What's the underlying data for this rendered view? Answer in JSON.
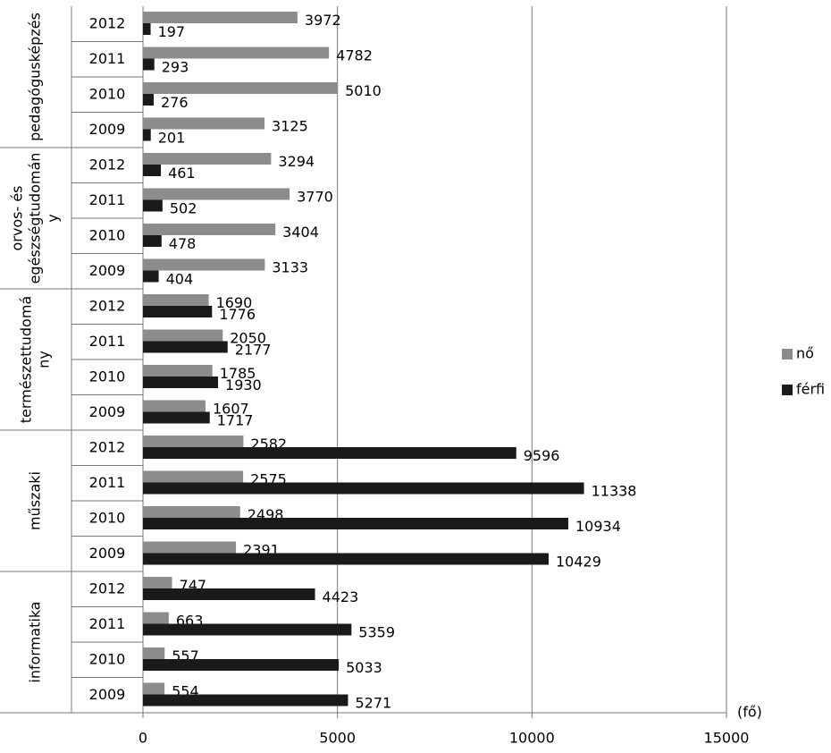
{
  "chart_data": {
    "type": "bar",
    "orientation": "horizontal",
    "groups": [
      {
        "name": [
          "pedagógusképzés"
        ],
        "categories": [
          "2012",
          "2011",
          "2010",
          "2009"
        ]
      },
      {
        "name": [
          "orvos- és",
          "egészségtudomán",
          "y"
        ],
        "categories": [
          "2012",
          "2011",
          "2010",
          "2009"
        ]
      },
      {
        "name": [
          "természettudomá",
          "ny"
        ],
        "categories": [
          "2012",
          "2011",
          "2010",
          "2009"
        ]
      },
      {
        "name": [
          "műszaki"
        ],
        "categories": [
          "2012",
          "2011",
          "2010",
          "2009"
        ]
      },
      {
        "name": [
          "informatika"
        ],
        "categories": [
          "2012",
          "2011",
          "2010",
          "2009"
        ]
      }
    ],
    "series": [
      {
        "name": "nő",
        "color": "#8c8c8c",
        "values": [
          3972,
          4782,
          5010,
          3125,
          3294,
          3770,
          3404,
          3133,
          1690,
          2050,
          1785,
          1607,
          2582,
          2575,
          2498,
          2391,
          747,
          663,
          557,
          554
        ]
      },
      {
        "name": "férfi",
        "color": "#1a1a1a",
        "values": [
          197,
          293,
          276,
          201,
          461,
          502,
          478,
          404,
          1776,
          2177,
          1930,
          1717,
          9596,
          11338,
          10934,
          10429,
          4423,
          5359,
          5033,
          5271
        ]
      }
    ],
    "xlim": [
      0,
      15000
    ],
    "xticks": [
      0,
      5000,
      10000,
      15000
    ],
    "x_unit_label": "(fő)",
    "grid": true,
    "legend": "right"
  }
}
